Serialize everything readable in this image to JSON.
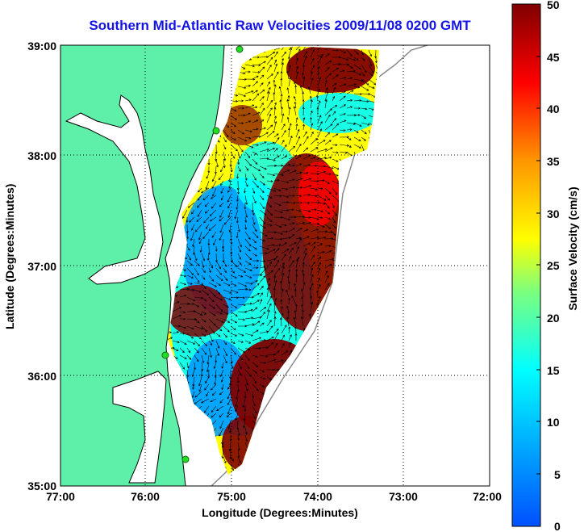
{
  "title": "Southern Mid-Atlantic Raw Velocities 2009/11/08 0200 GMT",
  "xlabel": "Longitude (Degrees:Minutes)",
  "ylabel": "Latitude (Degrees:Minutes)",
  "colorbar_label": "Surface Velocity (cm/s)",
  "x_ticks": [
    "77:00",
    "76:00",
    "75:00",
    "74:00",
    "73:00",
    "72:00"
  ],
  "y_ticks": [
    "39:00",
    "38:00",
    "37:00",
    "36:00",
    "35:00"
  ],
  "colorbar_ticks": [
    "50",
    "45",
    "40",
    "35",
    "30",
    "25",
    "20",
    "15",
    "10",
    "5",
    "0"
  ],
  "colors": {
    "title": "#1414e6",
    "land": "#5ef0a8",
    "water": "#ffffff",
    "station": "#22dd22"
  },
  "chart_data": {
    "type": "heatmap",
    "title": "Southern Mid-Atlantic Raw Velocities 2009/11/08 0200 GMT",
    "xlabel": "Longitude (Degrees:Minutes)",
    "ylabel": "Latitude (Degrees:Minutes)",
    "xlim": [
      -77,
      -72
    ],
    "ylim": [
      35,
      39
    ],
    "color_range": [
      0,
      50
    ],
    "colorbar_label": "Surface Velocity (cm/s)",
    "colormap": "jet",
    "grid": true
  }
}
